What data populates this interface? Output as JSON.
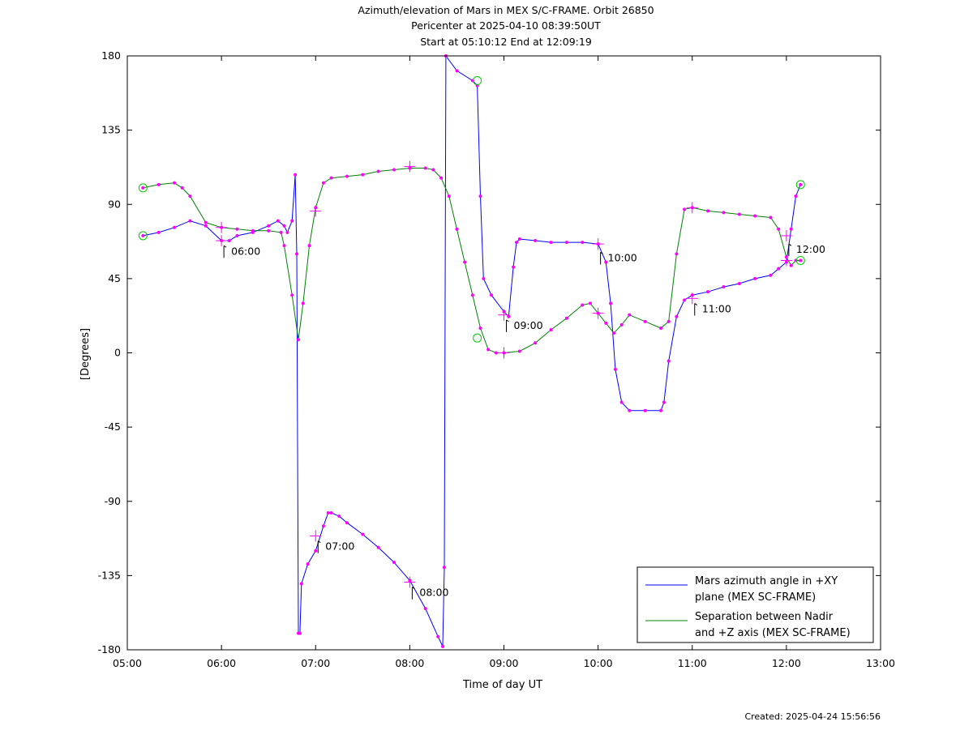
{
  "chart_data": {
    "type": "line",
    "title_lines": [
      "Azimuth/elevation of Mars in MEX S/C-FRAME.  Orbit 26850",
      "Pericenter at 2025-04-10 08:39:50UT",
      "Start at 05:10:12 End at 12:09:19"
    ],
    "xlabel": "Time of day UT",
    "ylabel": "[Degrees]",
    "xlim": [
      "05:00",
      "13:00"
    ],
    "ylim": [
      -180,
      180
    ],
    "x_ticks": [
      "05:00",
      "06:00",
      "07:00",
      "08:00",
      "09:00",
      "10:00",
      "11:00",
      "12:00",
      "13:00"
    ],
    "y_ticks": [
      180,
      135,
      90,
      45,
      0,
      -45,
      -90,
      -135,
      -180
    ],
    "grid": false,
    "legend_position": "bottom-right",
    "series": [
      {
        "name": "Mars azimuth angle in +XY plane (MEX SC-FRAME)",
        "legend_lines": [
          "Mars azimuth angle in +XY",
          "plane (MEX SC-FRAME)"
        ],
        "color": "#0000ff",
        "points": [
          [
            "05:10",
            71
          ],
          [
            "05:20",
            73
          ],
          [
            "05:30",
            76
          ],
          [
            "05:40",
            80
          ],
          [
            "05:50",
            77
          ],
          [
            "06:00",
            68
          ],
          [
            "06:05",
            68
          ],
          [
            "06:10",
            71
          ],
          [
            "06:20",
            73
          ],
          [
            "06:30",
            77
          ],
          [
            "06:36",
            80
          ],
          [
            "06:40",
            77
          ],
          [
            "06:42",
            73
          ],
          [
            "06:45",
            80
          ],
          [
            "06:47",
            108
          ],
          [
            "06:48",
            60
          ],
          [
            "06:49",
            -170
          ],
          [
            "06:50",
            -170
          ],
          [
            "06:51",
            -140
          ],
          [
            "06:55",
            -128
          ],
          [
            "07:00",
            -120
          ],
          [
            "07:05",
            -105
          ],
          [
            "07:08",
            -97
          ],
          [
            "07:10",
            -97
          ],
          [
            "07:15",
            -99
          ],
          [
            "07:20",
            -103
          ],
          [
            "07:30",
            -110
          ],
          [
            "07:40",
            -118
          ],
          [
            "07:50",
            -127
          ],
          [
            "08:00",
            -138
          ],
          [
            "08:10",
            -155
          ],
          [
            "08:18",
            -172
          ],
          [
            "08:21",
            -178
          ],
          [
            "08:22",
            -130
          ],
          [
            "08:23",
            180
          ],
          [
            "08:30",
            171
          ],
          [
            "08:40",
            165
          ],
          [
            "08:43",
            162
          ],
          [
            "08:45",
            95
          ],
          [
            "08:47",
            45
          ],
          [
            "08:52",
            35
          ],
          [
            "09:00",
            25
          ],
          [
            "09:03",
            22
          ],
          [
            "09:06",
            52
          ],
          [
            "09:08",
            67
          ],
          [
            "09:10",
            69
          ],
          [
            "09:20",
            68
          ],
          [
            "09:30",
            67
          ],
          [
            "09:40",
            67
          ],
          [
            "09:50",
            67
          ],
          [
            "10:00",
            66
          ],
          [
            "10:05",
            55
          ],
          [
            "10:08",
            30
          ],
          [
            "10:11",
            -10
          ],
          [
            "10:15",
            -30
          ],
          [
            "10:20",
            -35
          ],
          [
            "10:30",
            -35
          ],
          [
            "10:40",
            -35
          ],
          [
            "10:42",
            -30
          ],
          [
            "10:45",
            -5
          ],
          [
            "10:50",
            22
          ],
          [
            "10:55",
            32
          ],
          [
            "11:00",
            35
          ],
          [
            "11:10",
            37
          ],
          [
            "11:20",
            40
          ],
          [
            "11:30",
            42
          ],
          [
            "11:40",
            45
          ],
          [
            "11:50",
            47
          ],
          [
            "11:55",
            51
          ],
          [
            "12:00",
            55
          ],
          [
            "12:03",
            75
          ],
          [
            "12:06",
            95
          ],
          [
            "12:09",
            102
          ]
        ]
      },
      {
        "name": "Separation between Nadir and +Z axis (MEX SC-FRAME)",
        "legend_lines": [
          "Separation between Nadir",
          "and +Z axis (MEX SC-FRAME)"
        ],
        "color": "#008000",
        "points": [
          [
            "05:10",
            100
          ],
          [
            "05:20",
            102
          ],
          [
            "05:30",
            103
          ],
          [
            "05:35",
            100
          ],
          [
            "05:40",
            95
          ],
          [
            "05:50",
            79
          ],
          [
            "06:00",
            76
          ],
          [
            "06:10",
            75
          ],
          [
            "06:20",
            74
          ],
          [
            "06:30",
            74
          ],
          [
            "06:38",
            73
          ],
          [
            "06:40",
            65
          ],
          [
            "06:45",
            35
          ],
          [
            "06:49",
            8
          ],
          [
            "06:52",
            30
          ],
          [
            "06:56",
            65
          ],
          [
            "07:00",
            88
          ],
          [
            "07:05",
            103
          ],
          [
            "07:10",
            106
          ],
          [
            "07:20",
            107
          ],
          [
            "07:30",
            108
          ],
          [
            "07:40",
            110
          ],
          [
            "07:50",
            111
          ],
          [
            "08:00",
            112
          ],
          [
            "08:10",
            112
          ],
          [
            "08:15",
            111
          ],
          [
            "08:20",
            106
          ],
          [
            "08:25",
            95
          ],
          [
            "08:30",
            75
          ],
          [
            "08:35",
            55
          ],
          [
            "08:40",
            35
          ],
          [
            "08:45",
            15
          ],
          [
            "08:50",
            2
          ],
          [
            "08:55",
            0
          ],
          [
            "09:00",
            0
          ],
          [
            "09:10",
            1
          ],
          [
            "09:20",
            6
          ],
          [
            "09:30",
            14
          ],
          [
            "09:40",
            21
          ],
          [
            "09:50",
            29
          ],
          [
            "09:55",
            30
          ],
          [
            "10:00",
            24
          ],
          [
            "10:05",
            18
          ],
          [
            "10:10",
            12
          ],
          [
            "10:15",
            17
          ],
          [
            "10:20",
            23
          ],
          [
            "10:30",
            19
          ],
          [
            "10:40",
            15
          ],
          [
            "10:45",
            19
          ],
          [
            "10:50",
            60
          ],
          [
            "10:55",
            87
          ],
          [
            "11:00",
            88
          ],
          [
            "11:10",
            86
          ],
          [
            "11:20",
            85
          ],
          [
            "11:30",
            84
          ],
          [
            "11:40",
            83
          ],
          [
            "11:50",
            82
          ],
          [
            "11:55",
            75
          ],
          [
            "12:00",
            58
          ],
          [
            "12:03",
            53
          ],
          [
            "12:06",
            56
          ],
          [
            "12:09",
            56
          ]
        ]
      }
    ],
    "circle_markers": [
      {
        "series": 0,
        "x": "05:10",
        "y": 71
      },
      {
        "series": 0,
        "x": "08:43",
        "y": 165
      },
      {
        "series": 0,
        "x": "12:09",
        "y": 102
      },
      {
        "series": 1,
        "x": "05:10",
        "y": 100
      },
      {
        "series": 1,
        "x": "08:43",
        "y": 9
      },
      {
        "series": 1,
        "x": "12:09",
        "y": 56
      }
    ],
    "cross_markers": [
      {
        "x": "06:00",
        "y": 76
      },
      {
        "x": "06:00",
        "y": 68
      },
      {
        "x": "07:00",
        "y": 86
      },
      {
        "x": "07:00",
        "y": -111
      },
      {
        "x": "08:00",
        "y": 113
      },
      {
        "x": "08:00",
        "y": -139
      },
      {
        "x": "09:00",
        "y": 0
      },
      {
        "x": "09:00",
        "y": 23
      },
      {
        "x": "10:00",
        "y": 66
      },
      {
        "x": "10:00",
        "y": 24
      },
      {
        "x": "11:00",
        "y": 88
      },
      {
        "x": "11:00",
        "y": 33
      },
      {
        "x": "12:00",
        "y": 71
      },
      {
        "x": "12:00",
        "y": 56
      }
    ],
    "hour_annotations": [
      {
        "x": "06:00",
        "y": 62,
        "label": "06:00"
      },
      {
        "x": "07:00",
        "y": -117,
        "label": "07:00"
      },
      {
        "x": "08:00",
        "y": -145,
        "label": "08:00"
      },
      {
        "x": "09:00",
        "y": 17,
        "label": "09:00"
      },
      {
        "x": "10:00",
        "y": 58,
        "label": "10:00"
      },
      {
        "x": "11:00",
        "y": 27,
        "label": "11:00"
      },
      {
        "x": "12:00",
        "y": 63,
        "label": "12:00"
      }
    ],
    "created": "Created: 2025-04-24 15:56:56"
  }
}
